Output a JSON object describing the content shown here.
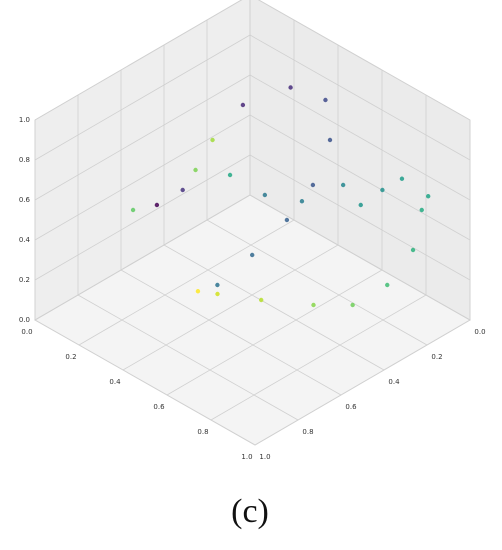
{
  "chart_data": {
    "type": "scatter3d",
    "caption": "(c)",
    "x": [
      0.265,
      0.3,
      0.3,
      0.29,
      0.25,
      0.3,
      0.38,
      0.47,
      0.52,
      0.54,
      0.5,
      0.44,
      0.36,
      0.34,
      0.38,
      0.52,
      0.66,
      0.75,
      0.79,
      0.79,
      0.81,
      0.68,
      0.57,
      0.5,
      0.39,
      0.31,
      0.72,
      0.81,
      0.65
    ],
    "y": [
      0.815,
      0.74,
      0.62,
      0.55,
      0.43,
      0.34,
      0.2,
      0.13,
      0.16,
      0.26,
      0.34,
      0.44,
      0.52,
      0.59,
      0.54,
      0.48,
      0.38,
      0.29,
      0.17,
      0.05,
      0.03,
      0.08,
      0.15,
      0.27,
      0.33,
      0.41,
      0.03,
      0.0,
      0.15
    ],
    "z": [
      0.6,
      0.6,
      0.6,
      0.65,
      0.7,
      0.85,
      0.9,
      0.85,
      0.7,
      0.55,
      0.4,
      0.25,
      0.1,
      0.1,
      0.08,
      0.1,
      0.1,
      0.1,
      0.15,
      0.25,
      0.45,
      0.5,
      0.5,
      0.45,
      0.45,
      0.55,
      0.55,
      0.5,
      0.45
    ],
    "colors": [
      "#5ec962",
      "#440154",
      "#46327e",
      "#7ad151",
      "#a0da39",
      "#482878",
      "#472d7b",
      "#3e4989",
      "#3b528b",
      "#39568c",
      "#355f8d",
      "#31688e",
      "#2c728e",
      "#fde725",
      "#d0e11c",
      "#b5de2b",
      "#86d549",
      "#6ece58",
      "#3fbc73",
      "#2db27d",
      "#25ab82",
      "#21918c",
      "#24868e",
      "#287c8e",
      "#2a788e",
      "#22a884",
      "#1f9e89",
      "#20a486",
      "#1f958b"
    ],
    "xlim": [
      0,
      1
    ],
    "ylim": [
      0,
      1
    ],
    "zlim": [
      0,
      1
    ],
    "xticks": [
      {
        "value": 0,
        "label": "0.0"
      },
      0.2,
      0.4,
      0.6,
      0.8,
      {
        "value": 1,
        "label": "1.0"
      }
    ],
    "yticks": [
      {
        "value": 0,
        "label": "0.0"
      },
      0.2,
      0.4,
      0.6,
      0.8,
      {
        "value": 1,
        "label": "1.0"
      }
    ],
    "zticks": [
      {
        "value": 0,
        "label": "0.0"
      },
      0.2,
      0.4,
      0.6,
      0.8,
      {
        "value": 1,
        "label": "1.0"
      }
    ],
    "grid": true
  }
}
